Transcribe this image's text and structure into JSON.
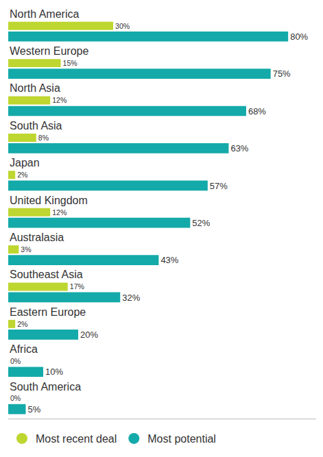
{
  "chart_data": {
    "type": "bar",
    "orientation": "horizontal",
    "categories": [
      "North America",
      "Western Europe",
      "North Asia",
      "South Asia",
      "Japan",
      "United Kingdom",
      "Australasia",
      "Southeast Asia",
      "Eastern Europe",
      "Africa",
      "South America"
    ],
    "series": [
      {
        "name": "Most recent deal",
        "color": "#bed630",
        "marker": "circle",
        "values": [
          30,
          15,
          12,
          8,
          2,
          12,
          3,
          17,
          2,
          0,
          0
        ],
        "value_labels": [
          "30%",
          "15%",
          "12%",
          "8%",
          "2%",
          "12%",
          "3%",
          "17%",
          "2%",
          "0%",
          "0%"
        ]
      },
      {
        "name": "Most potential",
        "color": "#14aaa9",
        "marker": "circle",
        "values": [
          80,
          75,
          68,
          63,
          57,
          52,
          43,
          32,
          20,
          10,
          5
        ],
        "value_labels": [
          "80%",
          "75%",
          "68%",
          "63%",
          "57%",
          "52%",
          "43%",
          "32%",
          "20%",
          "10%",
          "5%"
        ]
      }
    ],
    "xlim": [
      0,
      88
    ],
    "xticks": [],
    "grid": false,
    "legend": "bottom left",
    "data_labels": true,
    "tick_labels": false
  }
}
